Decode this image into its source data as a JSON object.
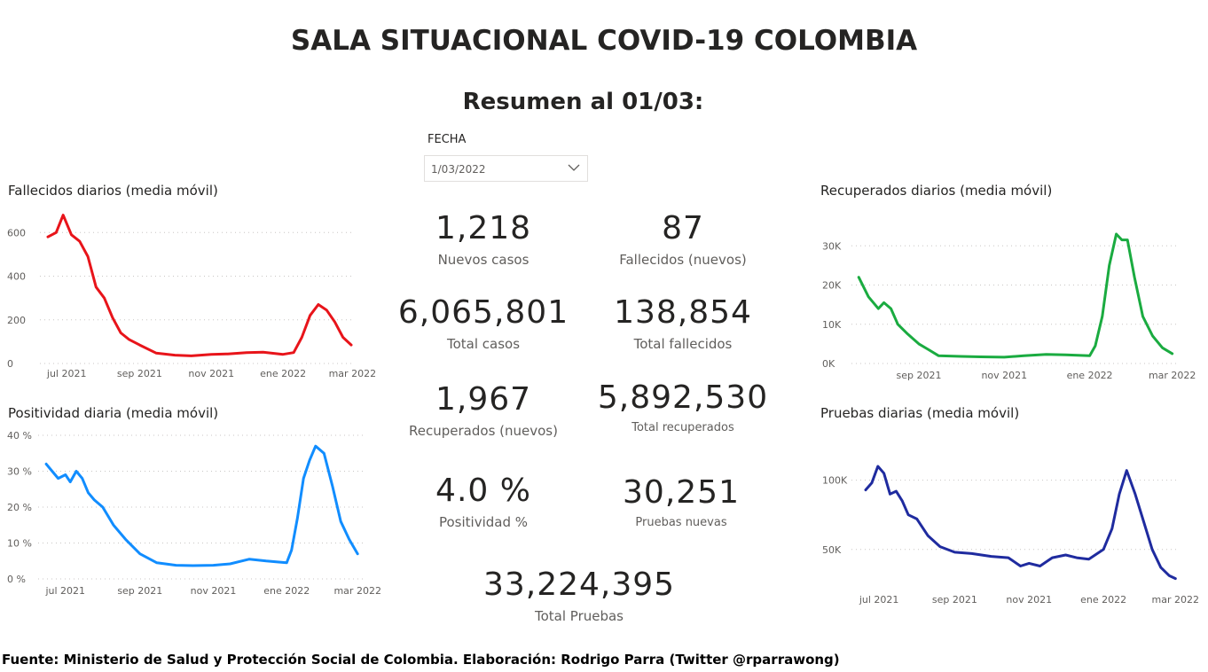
{
  "header": {
    "title": "SALA SITUACIONAL COVID-19 COLOMBIA",
    "subtitle": "Resumen al 01/03:"
  },
  "filter": {
    "label": "FECHA",
    "value": "1/03/2022",
    "icon": "chevron-down-icon"
  },
  "kpis": {
    "nuevos_casos": {
      "value": "1,218",
      "label": "Nuevos casos"
    },
    "fallecidos_nuevos": {
      "value": "87",
      "label": "Fallecidos (nuevos)"
    },
    "total_casos": {
      "value": "6,065,801",
      "label": "Total casos"
    },
    "total_fallecidos": {
      "value": "138,854",
      "label": "Total fallecidos"
    },
    "recuperados_nuevos": {
      "value": "1,967",
      "label": "Recuperados (nuevos)"
    },
    "total_recuperados": {
      "value": "5,892,530",
      "label": "Total recuperados"
    },
    "positividad": {
      "value": "4.0 %",
      "label": "Positividad %"
    },
    "pruebas_nuevas": {
      "value": "30,251",
      "label": "Pruebas nuevas"
    },
    "total_pruebas": {
      "value": "33,224,395",
      "label": "Total Pruebas"
    }
  },
  "footer": {
    "source": "Fuente: Ministerio de Salud y Protección Social de Colombia. Elaboración: Rodrigo Parra (Twitter @rparrawong)"
  },
  "chart_data": [
    {
      "id": "fallecidos",
      "type": "line",
      "title": "Fallecidos diarios (media móvil)",
      "color": "#e8141a",
      "x_tick_labels": [
        "jul 2021",
        "sep 2021",
        "nov 2021",
        "ene 2022",
        "mar 2022"
      ],
      "y_tick_labels": [
        "0",
        "200",
        "400",
        "600"
      ],
      "y_ticks": [
        0,
        200,
        400,
        600
      ],
      "ylim": [
        0,
        650
      ],
      "x": [
        "2021-06-15",
        "2021-06-22",
        "2021-06-28",
        "2021-07-05",
        "2021-07-12",
        "2021-07-19",
        "2021-07-26",
        "2021-08-02",
        "2021-08-09",
        "2021-08-16",
        "2021-08-23",
        "2021-09-01",
        "2021-09-15",
        "2021-10-01",
        "2021-10-15",
        "2021-11-01",
        "2021-11-15",
        "2021-12-01",
        "2021-12-15",
        "2022-01-01",
        "2022-01-10",
        "2022-01-17",
        "2022-01-24",
        "2022-01-31",
        "2022-02-07",
        "2022-02-14",
        "2022-02-21",
        "2022-02-28"
      ],
      "values": [
        580,
        600,
        680,
        590,
        560,
        490,
        350,
        300,
        210,
        140,
        110,
        85,
        48,
        38,
        35,
        42,
        44,
        50,
        52,
        42,
        50,
        120,
        220,
        270,
        245,
        190,
        120,
        85
      ],
      "x_range": [
        "2021-06-15",
        "2022-02-28"
      ]
    },
    {
      "id": "positividad",
      "type": "line",
      "title": "Positividad diaria (media móvil)",
      "color": "#118dff",
      "x_tick_labels": [
        "jul 2021",
        "sep 2021",
        "nov 2021",
        "ene 2022",
        "mar 2022"
      ],
      "y_tick_labels": [
        "0 %",
        "10 %",
        "20 %",
        "30 %",
        "40 %"
      ],
      "y_ticks": [
        0,
        10,
        20,
        30,
        40
      ],
      "ylim": [
        0,
        40
      ],
      "x": [
        "2021-06-15",
        "2021-06-20",
        "2021-06-25",
        "2021-07-01",
        "2021-07-05",
        "2021-07-10",
        "2021-07-15",
        "2021-07-20",
        "2021-07-25",
        "2021-08-01",
        "2021-08-10",
        "2021-08-20",
        "2021-09-01",
        "2021-09-15",
        "2021-10-01",
        "2021-10-15",
        "2021-11-01",
        "2021-11-15",
        "2021-12-01",
        "2021-12-15",
        "2022-01-01",
        "2022-01-05",
        "2022-01-10",
        "2022-01-15",
        "2022-01-20",
        "2022-01-25",
        "2022-02-01",
        "2022-02-08",
        "2022-02-15",
        "2022-02-22",
        "2022-03-01"
      ],
      "values": [
        32,
        30,
        28,
        29,
        27,
        30,
        28,
        24,
        22,
        20,
        15,
        11,
        7,
        4.5,
        3.8,
        3.7,
        3.8,
        4.2,
        5.5,
        5,
        4.5,
        8,
        17,
        28,
        33,
        37,
        35,
        26,
        16,
        11,
        7
      ],
      "x_range": [
        "2021-06-15",
        "2022-03-01"
      ]
    },
    {
      "id": "recuperados",
      "type": "line",
      "title": "Recuperados diarios (media móvil)",
      "color": "#1aab40",
      "x_tick_labels": [
        "sep 2021",
        "nov 2021",
        "ene 2022",
        "mar 2022"
      ],
      "y_tick_labels": [
        "0K",
        "10K",
        "20K",
        "30K"
      ],
      "y_ticks": [
        0,
        10000,
        20000,
        30000
      ],
      "ylim": [
        0,
        33000
      ],
      "x": [
        "2021-07-20",
        "2021-07-27",
        "2021-08-03",
        "2021-08-07",
        "2021-08-12",
        "2021-08-17",
        "2021-08-24",
        "2021-09-01",
        "2021-09-08",
        "2021-09-15",
        "2021-10-01",
        "2021-10-15",
        "2021-11-01",
        "2021-11-15",
        "2021-12-01",
        "2021-12-15",
        "2022-01-01",
        "2022-01-05",
        "2022-01-10",
        "2022-01-15",
        "2022-01-20",
        "2022-01-24",
        "2022-01-28",
        "2022-02-02",
        "2022-02-08",
        "2022-02-15",
        "2022-02-22",
        "2022-03-01"
      ],
      "values": [
        22000,
        17000,
        14000,
        15500,
        14000,
        10000,
        7500,
        5000,
        3500,
        2000,
        1800,
        1700,
        1600,
        2000,
        2300,
        2200,
        2000,
        4500,
        12000,
        25000,
        33000,
        31500,
        31500,
        22000,
        12000,
        7000,
        4000,
        2500
      ],
      "x_range": [
        "2021-07-20",
        "2022-03-01"
      ]
    },
    {
      "id": "pruebas",
      "type": "line",
      "title": "Pruebas diarias (media móvil)",
      "color": "#1f2b9f",
      "x_tick_labels": [
        "jul 2021",
        "sep 2021",
        "nov 2021",
        "ene 2022",
        "mar 2022"
      ],
      "y_tick_labels": [
        "50K",
        "100K"
      ],
      "y_ticks": [
        50000,
        100000
      ],
      "ylim": [
        30000,
        110000
      ],
      "x": [
        "2021-06-20",
        "2021-06-25",
        "2021-06-30",
        "2021-07-05",
        "2021-07-10",
        "2021-07-15",
        "2021-07-20",
        "2021-07-25",
        "2021-08-01",
        "2021-08-10",
        "2021-08-20",
        "2021-09-01",
        "2021-09-15",
        "2021-10-01",
        "2021-10-15",
        "2021-10-25",
        "2021-11-01",
        "2021-11-10",
        "2021-11-20",
        "2021-12-01",
        "2021-12-10",
        "2021-12-20",
        "2022-01-01",
        "2022-01-08",
        "2022-01-14",
        "2022-01-20",
        "2022-01-27",
        "2022-02-03",
        "2022-02-10",
        "2022-02-17",
        "2022-02-24",
        "2022-03-01"
      ],
      "values": [
        93000,
        98000,
        110000,
        105000,
        90000,
        92000,
        85000,
        75000,
        72000,
        60000,
        52000,
        48000,
        47000,
        45000,
        44000,
        38000,
        40000,
        38000,
        44000,
        46000,
        44000,
        43000,
        50000,
        65000,
        90000,
        107000,
        90000,
        70000,
        50000,
        37000,
        31000,
        29000
      ],
      "x_range": [
        "2021-06-20",
        "2022-03-01"
      ]
    }
  ]
}
